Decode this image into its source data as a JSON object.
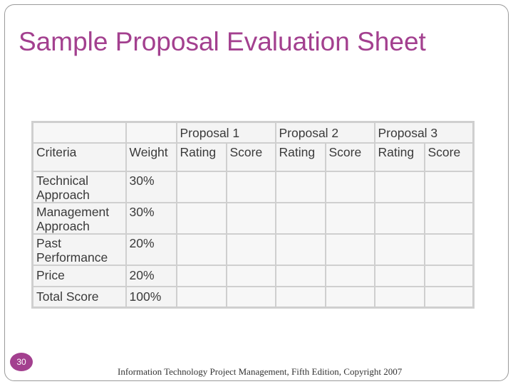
{
  "slide": {
    "title": "Sample Proposal Evaluation Sheet",
    "number": "30",
    "footer": "Information Technology Project Management, Fifth Edition, Copyright 2007"
  },
  "table": {
    "proposal_headers": [
      "Proposal 1",
      "Proposal 2",
      "Proposal 3"
    ],
    "column_headers": {
      "criteria": "Criteria",
      "weight": "Weight",
      "rating": "Rating",
      "score": "Score"
    },
    "rows": [
      {
        "criteria_line1": "Technical",
        "criteria_line2": "Approach",
        "weight": "30%"
      },
      {
        "criteria_line1": "Management",
        "criteria_line2": "Approach",
        "weight": "30%"
      },
      {
        "criteria_line1": "Past",
        "criteria_line2": "Performance",
        "weight": "20%"
      },
      {
        "criteria_line1": "Price",
        "criteria_line2": "",
        "weight": "20%"
      },
      {
        "criteria_line1": "Total Score",
        "criteria_line2": "",
        "weight": "100%"
      }
    ]
  }
}
